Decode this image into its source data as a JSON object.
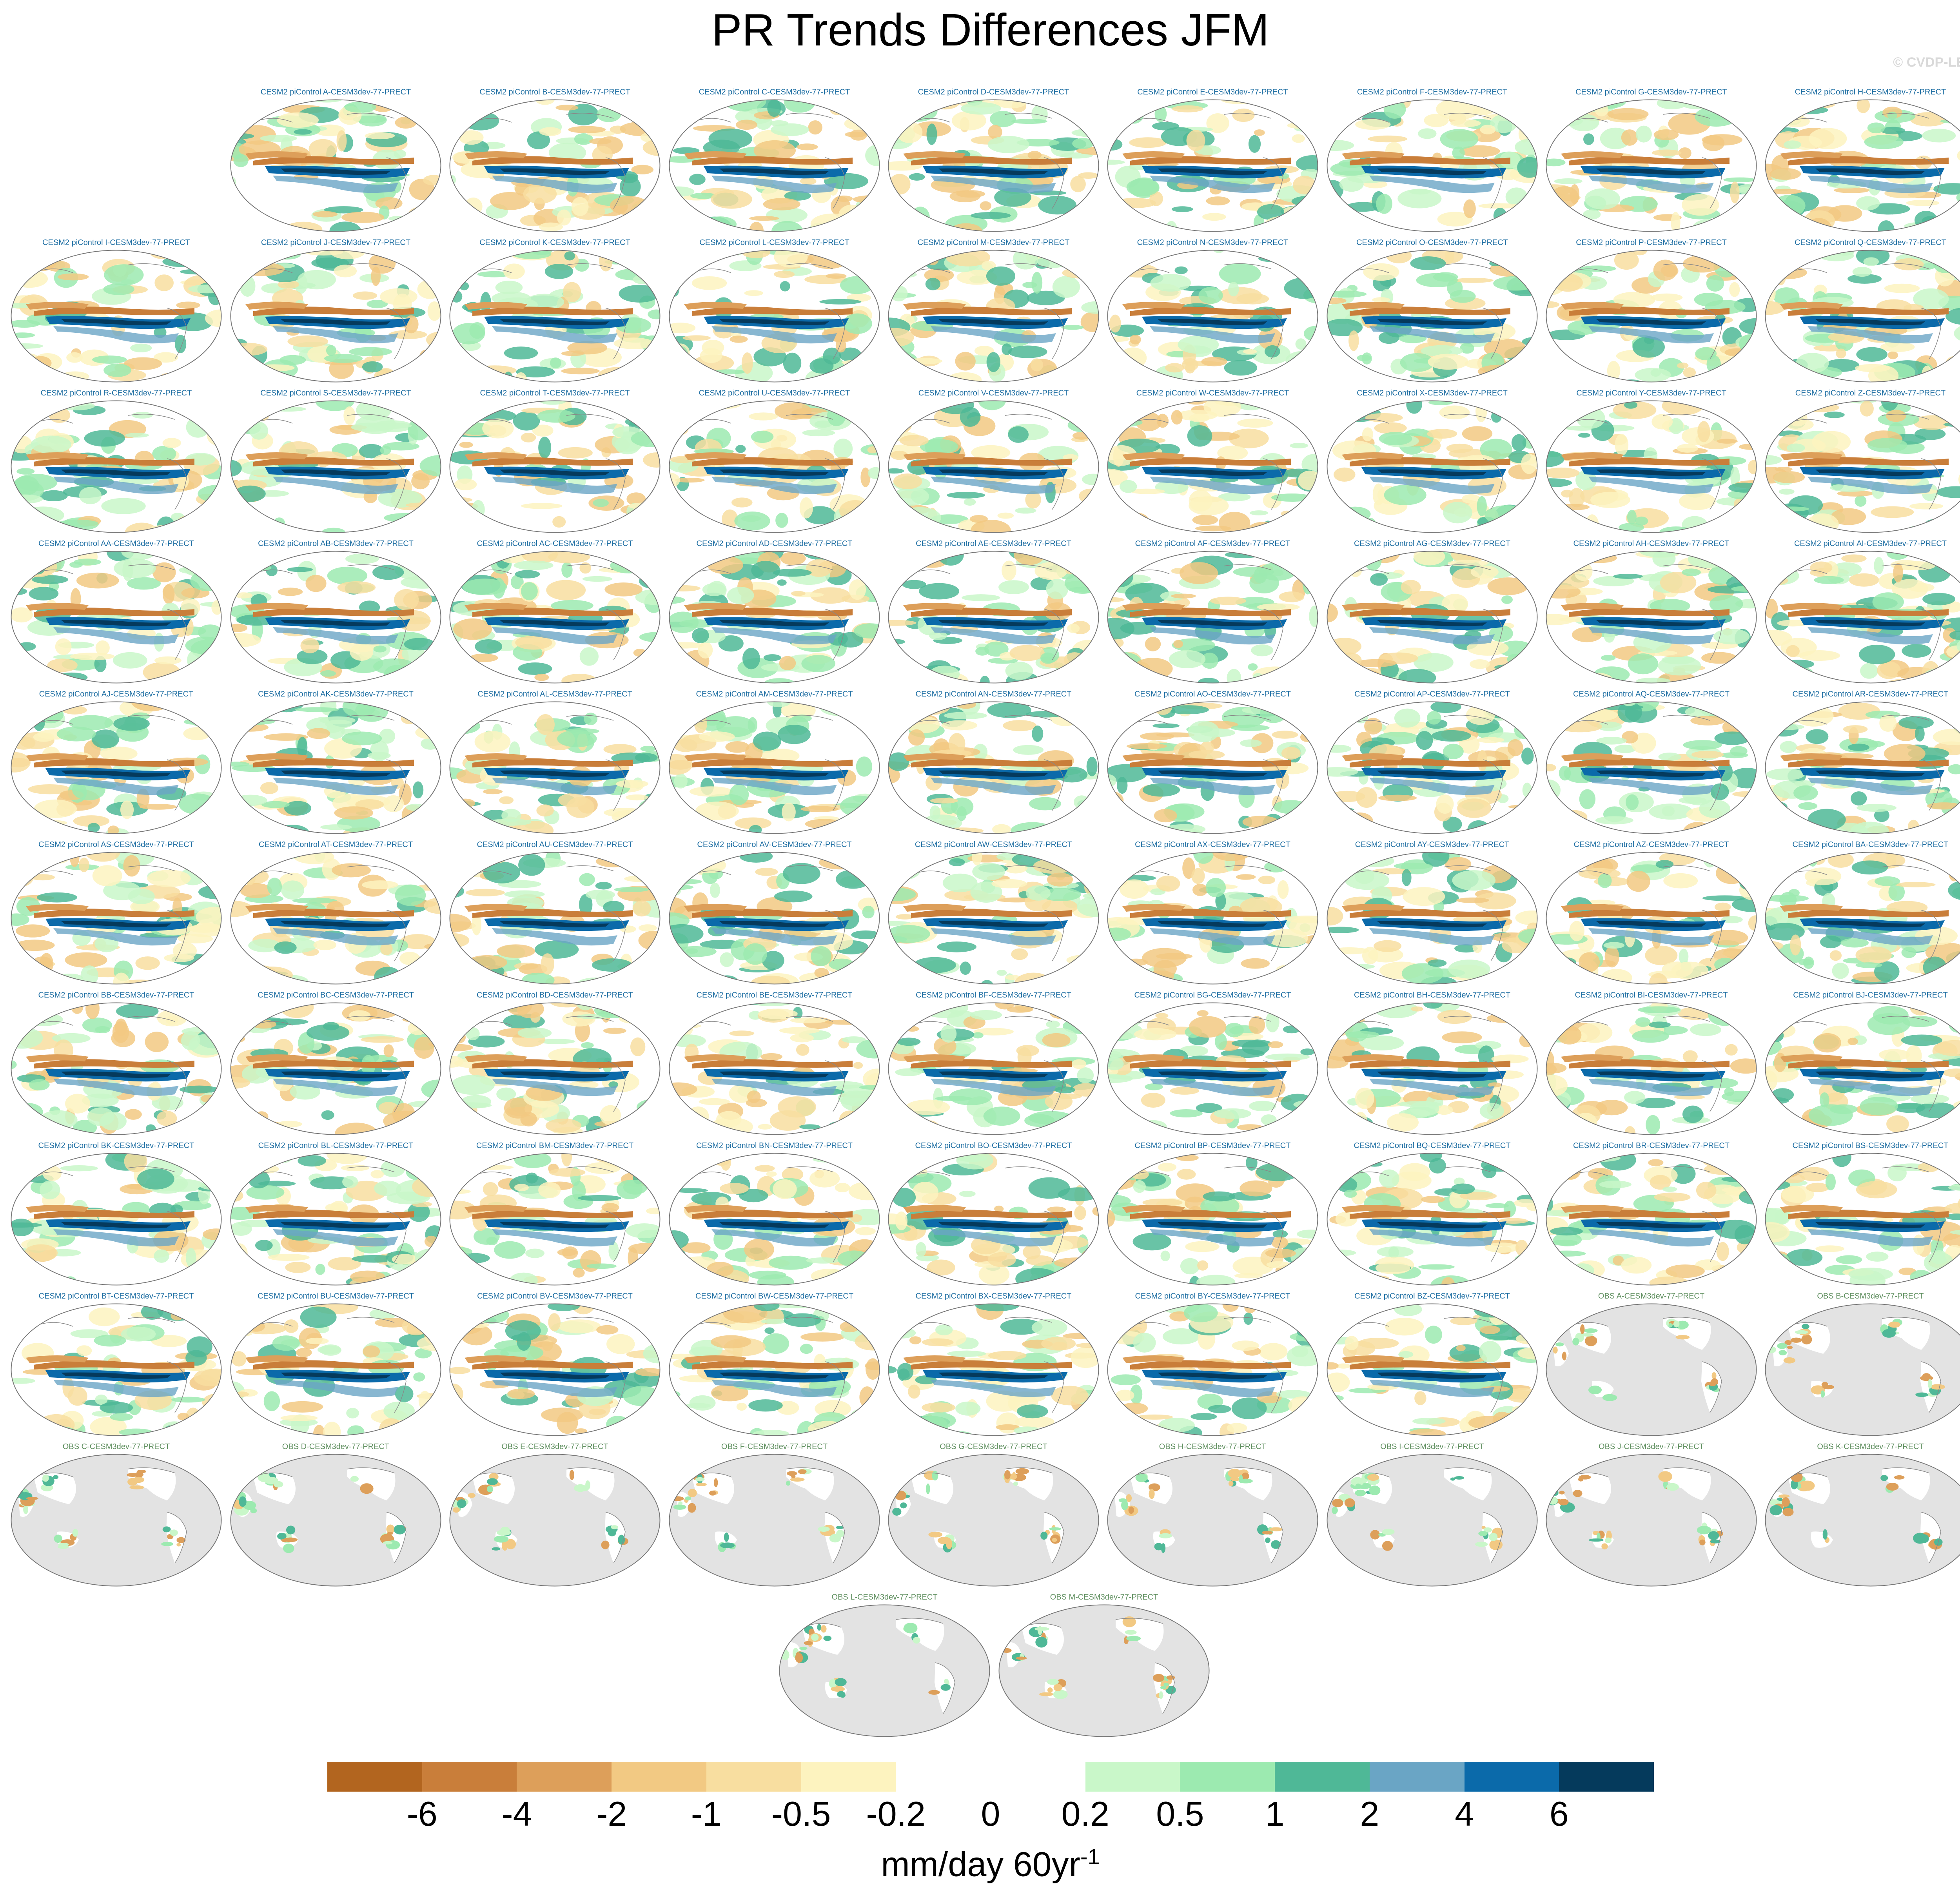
{
  "title": "PR Trends Differences JFM",
  "watermark": "© CVDP-LE",
  "panels": {
    "model_titles": [
      "CESM2 piControl A-CESM3dev-77-PRECT",
      "CESM2 piControl B-CESM3dev-77-PRECT",
      "CESM2 piControl C-CESM3dev-77-PRECT",
      "CESM2 piControl D-CESM3dev-77-PRECT",
      "CESM2 piControl E-CESM3dev-77-PRECT",
      "CESM2 piControl F-CESM3dev-77-PRECT",
      "CESM2 piControl G-CESM3dev-77-PRECT",
      "CESM2 piControl H-CESM3dev-77-PRECT",
      "CESM2 piControl I-CESM3dev-77-PRECT",
      "CESM2 piControl J-CESM3dev-77-PRECT",
      "CESM2 piControl K-CESM3dev-77-PRECT",
      "CESM2 piControl L-CESM3dev-77-PRECT",
      "CESM2 piControl M-CESM3dev-77-PRECT",
      "CESM2 piControl N-CESM3dev-77-PRECT",
      "CESM2 piControl O-CESM3dev-77-PRECT",
      "CESM2 piControl P-CESM3dev-77-PRECT",
      "CESM2 piControl Q-CESM3dev-77-PRECT",
      "CESM2 piControl R-CESM3dev-77-PRECT",
      "CESM2 piControl S-CESM3dev-77-PRECT",
      "CESM2 piControl T-CESM3dev-77-PRECT",
      "CESM2 piControl U-CESM3dev-77-PRECT",
      "CESM2 piControl V-CESM3dev-77-PRECT",
      "CESM2 piControl W-CESM3dev-77-PRECT",
      "CESM2 piControl X-CESM3dev-77-PRECT",
      "CESM2 piControl Y-CESM3dev-77-PRECT",
      "CESM2 piControl Z-CESM3dev-77-PRECT",
      "CESM2 piControl AA-CESM3dev-77-PRECT",
      "CESM2 piControl AB-CESM3dev-77-PRECT",
      "CESM2 piControl AC-CESM3dev-77-PRECT",
      "CESM2 piControl AD-CESM3dev-77-PRECT",
      "CESM2 piControl AE-CESM3dev-77-PRECT",
      "CESM2 piControl AF-CESM3dev-77-PRECT",
      "CESM2 piControl AG-CESM3dev-77-PRECT",
      "CESM2 piControl AH-CESM3dev-77-PRECT",
      "CESM2 piControl AI-CESM3dev-77-PRECT",
      "CESM2 piControl AJ-CESM3dev-77-PRECT",
      "CESM2 piControl AK-CESM3dev-77-PRECT",
      "CESM2 piControl AL-CESM3dev-77-PRECT",
      "CESM2 piControl AM-CESM3dev-77-PRECT",
      "CESM2 piControl AN-CESM3dev-77-PRECT",
      "CESM2 piControl AO-CESM3dev-77-PRECT",
      "CESM2 piControl AP-CESM3dev-77-PRECT",
      "CESM2 piControl AQ-CESM3dev-77-PRECT",
      "CESM2 piControl AR-CESM3dev-77-PRECT",
      "CESM2 piControl AS-CESM3dev-77-PRECT",
      "CESM2 piControl AT-CESM3dev-77-PRECT",
      "CESM2 piControl AU-CESM3dev-77-PRECT",
      "CESM2 piControl AV-CESM3dev-77-PRECT",
      "CESM2 piControl AW-CESM3dev-77-PRECT",
      "CESM2 piControl AX-CESM3dev-77-PRECT",
      "CESM2 piControl AY-CESM3dev-77-PRECT",
      "CESM2 piControl AZ-CESM3dev-77-PRECT",
      "CESM2 piControl BA-CESM3dev-77-PRECT",
      "CESM2 piControl BB-CESM3dev-77-PRECT",
      "CESM2 piControl BC-CESM3dev-77-PRECT",
      "CESM2 piControl BD-CESM3dev-77-PRECT",
      "CESM2 piControl BE-CESM3dev-77-PRECT",
      "CESM2 piControl BF-CESM3dev-77-PRECT",
      "CESM2 piControl BG-CESM3dev-77-PRECT",
      "CESM2 piControl BH-CESM3dev-77-PRECT",
      "CESM2 piControl BI-CESM3dev-77-PRECT",
      "CESM2 piControl BJ-CESM3dev-77-PRECT",
      "CESM2 piControl BK-CESM3dev-77-PRECT",
      "CESM2 piControl BL-CESM3dev-77-PRECT",
      "CESM2 piControl BM-CESM3dev-77-PRECT",
      "CESM2 piControl BN-CESM3dev-77-PRECT",
      "CESM2 piControl BO-CESM3dev-77-PRECT",
      "CESM2 piControl BP-CESM3dev-77-PRECT",
      "CESM2 piControl BQ-CESM3dev-77-PRECT",
      "CESM2 piControl BR-CESM3dev-77-PRECT",
      "CESM2 piControl BS-CESM3dev-77-PRECT",
      "CESM2 piControl BT-CESM3dev-77-PRECT",
      "CESM2 piControl BU-CESM3dev-77-PRECT",
      "CESM2 piControl BV-CESM3dev-77-PRECT",
      "CESM2 piControl BW-CESM3dev-77-PRECT",
      "CESM2 piControl BX-CESM3dev-77-PRECT",
      "CESM2 piControl BY-CESM3dev-77-PRECT",
      "CESM2 piControl BZ-CESM3dev-77-PRECT"
    ],
    "obs_titles": [
      "OBS A-CESM3dev-77-PRECT",
      "OBS B-CESM3dev-77-PRECT",
      "OBS C-CESM3dev-77-PRECT",
      "OBS D-CESM3dev-77-PRECT",
      "OBS E-CESM3dev-77-PRECT",
      "OBS F-CESM3dev-77-PRECT",
      "OBS G-CESM3dev-77-PRECT",
      "OBS H-CESM3dev-77-PRECT",
      "OBS I-CESM3dev-77-PRECT",
      "OBS J-CESM3dev-77-PRECT",
      "OBS K-CESM3dev-77-PRECT",
      "OBS L-CESM3dev-77-PRECT",
      "OBS M-CESM3dev-77-PRECT"
    ]
  },
  "colorbar": {
    "colors": [
      "#b2651f",
      "#c97e3a",
      "#dd9f5a",
      "#f2c983",
      "#f8dea0",
      "#fdf3bf",
      "#ffffff",
      "#ffffff",
      "#c9f7c9",
      "#9ceab0",
      "#4fb897",
      "#6aa5c5",
      "#0b6aaa",
      "#053a5c"
    ],
    "tick_labels": [
      "-6",
      "-4",
      "-2",
      "-1",
      "-0.5",
      "-0.2",
      "0",
      "0.2",
      "0.5",
      "1",
      "2",
      "4",
      "6"
    ],
    "units": "mm/day 60yr",
    "units_exponent": "-1"
  }
}
